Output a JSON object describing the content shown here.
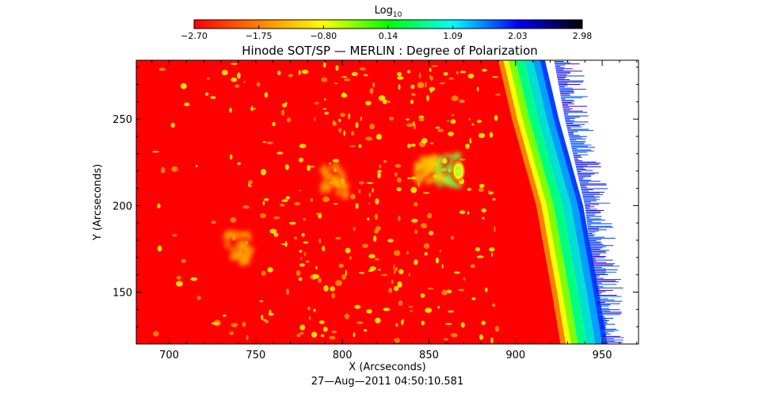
{
  "chart_data": {
    "type": "heatmap",
    "title": "Hinode SOT/SP — MERLIN : Degree of Polarization",
    "xlabel": "X (Arcseconds)",
    "ylabel": "Y (Arcseconds)",
    "xlim": [
      681,
      971
    ],
    "ylim": [
      120,
      284
    ],
    "x_ticks": [
      700,
      750,
      800,
      850,
      900,
      950
    ],
    "y_ticks": [
      150,
      200,
      250
    ],
    "grid": false,
    "colorbar": {
      "label": "Log",
      "label_subscript": "10",
      "ticks": [
        "−2.70",
        "−1.75",
        "−0.80",
        "0.14",
        "1.09",
        "2.03",
        "2.98"
      ],
      "range": [
        -2.7,
        2.98
      ],
      "colors": [
        "#ff0000",
        "#ff8000",
        "#ffff00",
        "#00ff00",
        "#00ffff",
        "#0000ff",
        "#000000"
      ]
    },
    "limb": {
      "description_points_x_at_y": [
        [
          284,
          890
        ],
        [
          250,
          898
        ],
        [
          200,
          912
        ],
        [
          150,
          921
        ],
        [
          120,
          926
        ]
      ],
      "off_disk_color": "#ffffff"
    },
    "features": [
      {
        "kind": "plage",
        "x": 860,
        "y": 220,
        "level": 0.14
      },
      {
        "kind": "plage",
        "x": 850,
        "y": 222,
        "level": -0.8
      },
      {
        "kind": "plage",
        "x": 795,
        "y": 215,
        "level": -1.2
      },
      {
        "kind": "plage",
        "x": 740,
        "y": 175,
        "level": -1.2
      }
    ],
    "background_level": -2.7
  },
  "footer": {
    "timestamp": "27—Aug—2011 04:50:10.581"
  }
}
